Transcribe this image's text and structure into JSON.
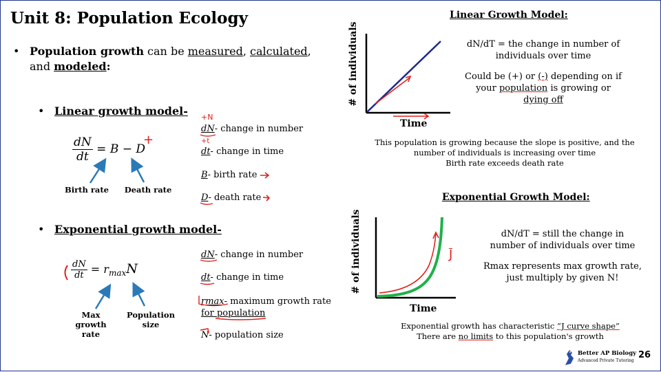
{
  "title": "Unit 8: Population Ecology",
  "intro": {
    "bold": "Population growth",
    "t1": " can be ",
    "w1": "measured",
    "t2": ", ",
    "w2": "calculated",
    "t3": ",",
    "t4": "and ",
    "w3": "modeled",
    "t5": ":"
  },
  "linear": {
    "heading": "Linear growth model-",
    "equation": {
      "num": "dN",
      "den": "dt",
      "rhs": "= B − D"
    },
    "labels": {
      "birth": "Birth rate",
      "death": "Death rate"
    },
    "defs": [
      {
        "sym": "dN",
        "text": "- change in number"
      },
      {
        "sym": "dt",
        "text": "- change in time"
      },
      {
        "sym": "B",
        "text": "- birth rate"
      },
      {
        "sym": "D",
        "text": "- death rate"
      }
    ]
  },
  "exponential": {
    "heading": "Exponential growth model-",
    "equation": {
      "num": "dN",
      "den": "dt",
      "eq": "= r",
      "sub": "max",
      "n": "N"
    },
    "labels": {
      "max1": "Max",
      "max2": "growth",
      "max3": "rate",
      "pop1": "Population",
      "pop2": "size"
    },
    "defs": [
      {
        "sym": "dN",
        "text": "- change in number"
      },
      {
        "sym": "dt",
        "text": "- change in time"
      },
      {
        "sym": "rmax",
        "text": "- maximum growth rate"
      },
      {
        "sym": "N",
        "text": "- population size"
      }
    ],
    "def3_line2": "for population"
  },
  "linear_panel": {
    "header": "Linear Growth Model:",
    "y_axis": "# of individuals",
    "x_axis": "Time",
    "desc1": "dN/dT = the change in number of",
    "desc2": "individuals over time",
    "desc3a": "Could be (+) or ",
    "desc3b": "(-)",
    "desc3c": " depending on if",
    "desc4a": "your ",
    "desc4b": "population",
    "desc4c": " is growing or",
    "desc5": "dying off",
    "caption1": "This population is growing because the slope is positive, and the",
    "caption2": "number of individuals is increasing over time",
    "caption3": "Birth rate exceeds death rate"
  },
  "exp_panel": {
    "header": "Exponential Growth Model:",
    "y_axis": "# of individuals",
    "x_axis": "Time",
    "desc1": "dN/dT =  still the change in",
    "desc2": "number of individuals over time",
    "desc3": "Rmax represents max growth rate,",
    "desc4": "just multiply by given N!",
    "caption1a": "Exponential growth has characteristic ",
    "caption1b": "“J curve shape”",
    "caption2a": "There are ",
    "caption2b": "no limits",
    "caption2c": " to this population's growth"
  },
  "annotations": {
    "plus": "+",
    "j": "J",
    "dN_mark": "+N",
    "dt_mark": "+t"
  },
  "footer": {
    "brand": "Better AP Biology",
    "tagline": "Advanced Private Tutoring",
    "page": "26"
  },
  "colors": {
    "ink_red": "#e0201c",
    "navy": "#1a2a8c",
    "green": "#1fb14a",
    "arrow_blue": "#2a7ab8",
    "border": "#22378a"
  }
}
